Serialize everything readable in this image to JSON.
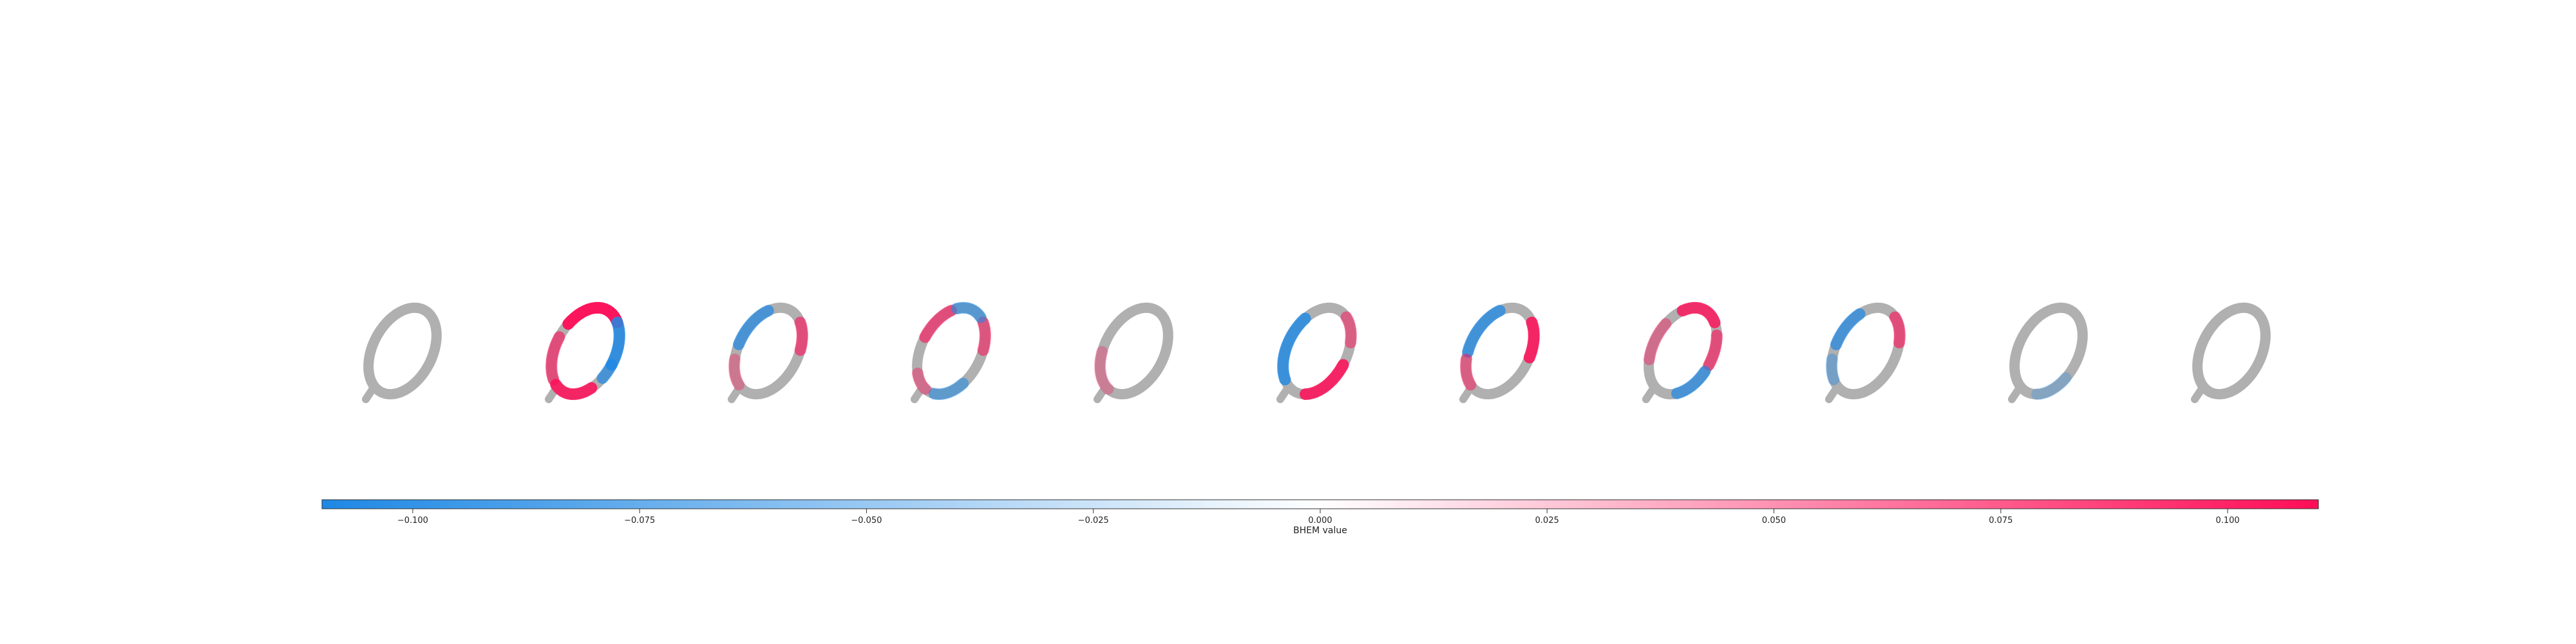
{
  "chart_data": {
    "type": "heatmap",
    "description_of_panels": "11 image panels of the same handwritten digit 0 in grey; panels 2-10 overlay red (positive) and blue (negative) attribution values",
    "panels": [
      {
        "index": 1,
        "overlay": "none"
      },
      {
        "index": 2,
        "overlay": "strong positive on left and bottom of ring, negative at top"
      },
      {
        "index": 3,
        "overlay": "weak mixed, negative left, positive top"
      },
      {
        "index": 4,
        "overlay": "mixed positive and negative around ring"
      },
      {
        "index": 5,
        "overlay": "weak positive bottom"
      },
      {
        "index": 6,
        "overlay": "positive right side, negative bottom-left"
      },
      {
        "index": 7,
        "overlay": "positive top-right, negative left"
      },
      {
        "index": 8,
        "overlay": "positive top and left, negative right"
      },
      {
        "index": 9,
        "overlay": "positive top, negative left-bottom"
      },
      {
        "index": 10,
        "overlay": "weak negative right"
      },
      {
        "index": 11,
        "overlay": "none"
      }
    ],
    "colorbar": {
      "label": "BHEM value",
      "range": [
        -0.11,
        0.11
      ],
      "ticks": [
        -0.1,
        -0.075,
        -0.05,
        -0.025,
        0.0,
        0.025,
        0.05,
        0.075,
        0.1
      ],
      "tick_labels": [
        "−0.100",
        "−0.075",
        "−0.050",
        "−0.025",
        "0.000",
        "0.025",
        "0.050",
        "0.075",
        "0.100"
      ],
      "colors": {
        "negative": "#1e88e5",
        "zero": "#ffffff",
        "positive": "#ff0d57"
      }
    }
  }
}
